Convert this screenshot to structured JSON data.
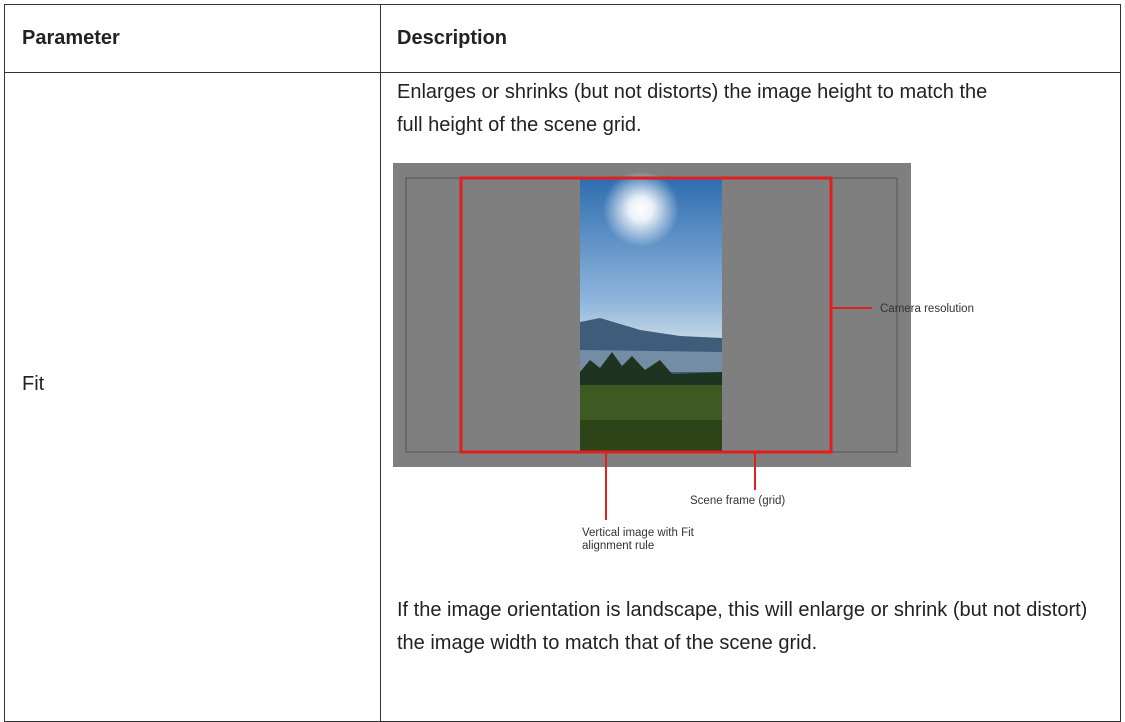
{
  "table": {
    "header": [
      "Parameter",
      "Description"
    ],
    "rows": [
      {
        "parameter": "Fit",
        "description": [
          "Enlarges or shrinks (but not distorts) the image height to match the full height of the scene grid.",
          "If the image orientation is landscape, this will enlarge or shrink (but not distort) the image width to match that of the scene grid."
        ],
        "figure": {
          "callouts": [
            "Camera resolution",
            "Scene frame (grid)",
            "Vertical image with Fit alignment rule"
          ]
        }
      }
    ]
  }
}
